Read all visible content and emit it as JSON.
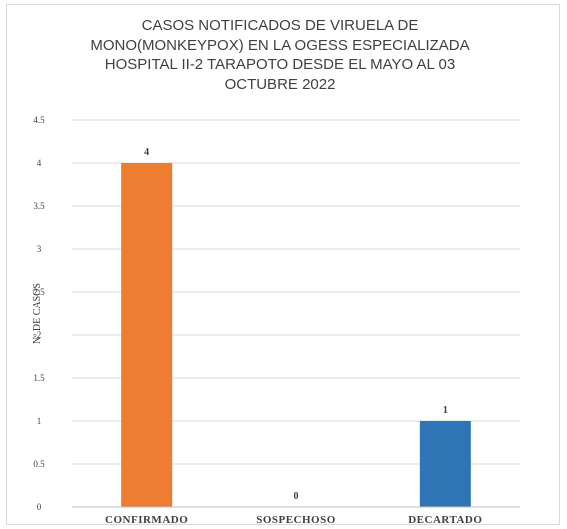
{
  "chart_data": {
    "type": "bar",
    "title": "CASOS NOTIFICADOS DE VIRUELA DE\nMONO(MONKEYPOX) EN LA OGESS ESPECIALIZADA\nHOSPITAL II-2 TARAPOTO DESDE EL MAYO AL 03\nOCTUBRE 2022",
    "xlabel": "",
    "ylabel": "Nº DE CASOS",
    "categories": [
      "CONFIRMADO",
      "SOSPECHOSO",
      "DECARTADO"
    ],
    "values": [
      4,
      0,
      1
    ],
    "data_labels": [
      "4",
      "0",
      "1"
    ],
    "bar_colors": [
      "#ED7D31",
      "#ED7D31",
      "#2E75B6"
    ],
    "ylim": [
      0,
      4.5
    ],
    "yticks": [
      "0",
      "0.5",
      "1",
      "1.5",
      "2",
      "2.5",
      "3",
      "3.5",
      "4",
      "4.5"
    ],
    "grid": true,
    "grid_color": "#d9d9d9",
    "legend": "none"
  }
}
